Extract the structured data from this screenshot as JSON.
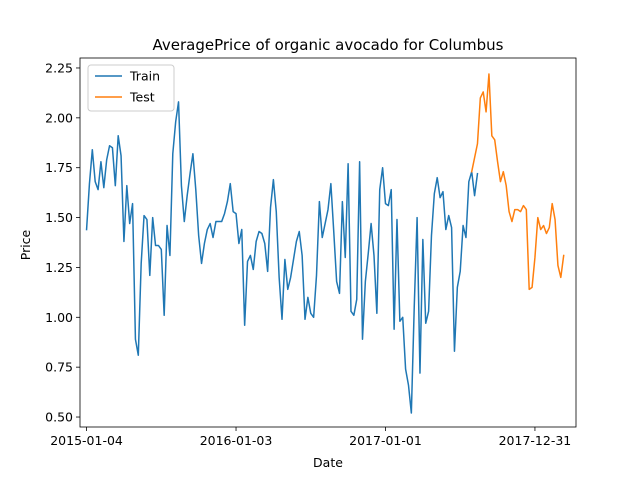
{
  "chart_data": {
    "type": "line",
    "title": "AveragePrice of organic avocado for Columbus",
    "xlabel": "Date",
    "ylabel": "Price",
    "xlim": [
      "2014-12-19",
      "2018-04-10"
    ],
    "ylim": [
      0.45,
      2.3
    ],
    "x_ticks": [
      "2015-01-04",
      "2016-01-03",
      "2017-01-01",
      "2017-12-31"
    ],
    "y_ticks": [
      0.5,
      0.75,
      1.0,
      1.25,
      1.5,
      1.75,
      2.0,
      2.25
    ],
    "y_tick_labels": [
      "0.50",
      "0.75",
      "1.00",
      "1.25",
      "1.50",
      "1.75",
      "2.00",
      "2.25"
    ],
    "grid": false,
    "legend_position": "top-left",
    "series": [
      {
        "name": "Train",
        "color": "#1f77b4",
        "start_date": "2015-01-04",
        "interval_days": 7,
        "values": [
          1.44,
          1.67,
          1.84,
          1.68,
          1.64,
          1.78,
          1.65,
          1.79,
          1.86,
          1.85,
          1.66,
          1.91,
          1.81,
          1.38,
          1.66,
          1.47,
          1.57,
          0.89,
          0.81,
          1.27,
          1.51,
          1.49,
          1.21,
          1.5,
          1.36,
          1.36,
          1.34,
          1.01,
          1.46,
          1.31,
          1.82,
          1.98,
          2.08,
          1.66,
          1.48,
          1.61,
          1.72,
          1.82,
          1.64,
          1.41,
          1.27,
          1.37,
          1.44,
          1.47,
          1.4,
          1.48,
          1.48,
          1.48,
          1.52,
          1.58,
          1.67,
          1.53,
          1.52,
          1.37,
          1.44,
          0.96,
          1.28,
          1.31,
          1.24,
          1.38,
          1.43,
          1.42,
          1.37,
          1.23,
          1.55,
          1.69,
          1.53,
          1.2,
          0.99,
          1.29,
          1.14,
          1.2,
          1.29,
          1.38,
          1.43,
          1.31,
          0.99,
          1.1,
          1.02,
          1.0,
          1.21,
          1.58,
          1.4,
          1.47,
          1.54,
          1.67,
          1.43,
          1.18,
          1.12,
          1.58,
          1.3,
          1.77,
          1.03,
          1.01,
          1.09,
          1.78,
          0.89,
          1.18,
          1.32,
          1.47,
          1.31,
          1.02,
          1.64,
          1.75,
          1.57,
          1.56,
          1.64,
          0.94,
          1.49,
          0.98,
          1.0,
          0.74,
          0.66,
          0.52,
          1.05,
          1.5,
          0.72,
          1.39,
          0.97,
          1.03,
          1.41,
          1.62,
          1.7,
          1.6,
          1.63,
          1.44,
          1.51,
          1.45,
          0.83,
          1.15,
          1.23,
          1.46,
          1.4,
          1.68,
          1.73,
          1.61,
          1.72
        ]
      },
      {
        "name": "Test",
        "color": "#ff7f0e",
        "start_date": "2017-07-30",
        "interval_days": 7,
        "values": [
          1.73,
          1.8,
          1.87,
          2.1,
          2.13,
          2.03,
          2.22,
          1.91,
          1.89,
          1.78,
          1.68,
          1.73,
          1.66,
          1.53,
          1.48,
          1.54,
          1.54,
          1.53,
          1.56,
          1.54,
          1.14,
          1.15,
          1.3,
          1.5,
          1.44,
          1.46,
          1.42,
          1.45,
          1.57,
          1.49,
          1.26,
          1.2,
          1.31
        ]
      }
    ]
  }
}
